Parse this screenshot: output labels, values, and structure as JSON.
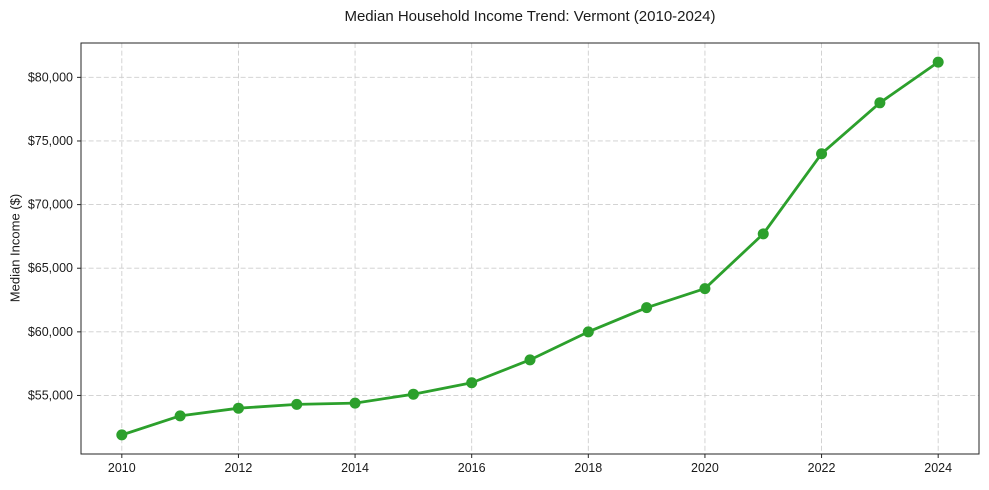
{
  "chart_data": {
    "type": "line",
    "title": "Median Household Income Trend: Vermont (2010-2024)",
    "xlabel": "",
    "ylabel": "Median Income ($)",
    "x": [
      2010,
      2011,
      2012,
      2013,
      2014,
      2015,
      2016,
      2017,
      2018,
      2019,
      2020,
      2021,
      2022,
      2023,
      2024
    ],
    "y": [
      51900,
      53400,
      54000,
      54300,
      54400,
      55100,
      56000,
      57800,
      60000,
      61900,
      63400,
      67700,
      74000,
      78000,
      81200
    ],
    "x_ticks": [
      2010,
      2012,
      2014,
      2016,
      2018,
      2020,
      2022,
      2024
    ],
    "x_tick_labels": [
      "2010",
      "2012",
      "2014",
      "2016",
      "2018",
      "2020",
      "2022",
      "2024"
    ],
    "y_ticks": [
      55000,
      60000,
      65000,
      70000,
      75000,
      80000
    ],
    "y_tick_labels": [
      "$55,000",
      "$60,000",
      "$65,000",
      "$70,000",
      "$75,000",
      "$80,000"
    ],
    "xlim": [
      2009.3,
      2024.7
    ],
    "ylim": [
      50400,
      82700
    ],
    "grid": true,
    "grid_style": "dashed",
    "legend": false,
    "marker": "circle",
    "line_color": "#2ca02c",
    "marker_color": "#2ca02c",
    "grid_color": "#cdcdcd",
    "axis_color": "#262626",
    "background": "#ffffff"
  }
}
